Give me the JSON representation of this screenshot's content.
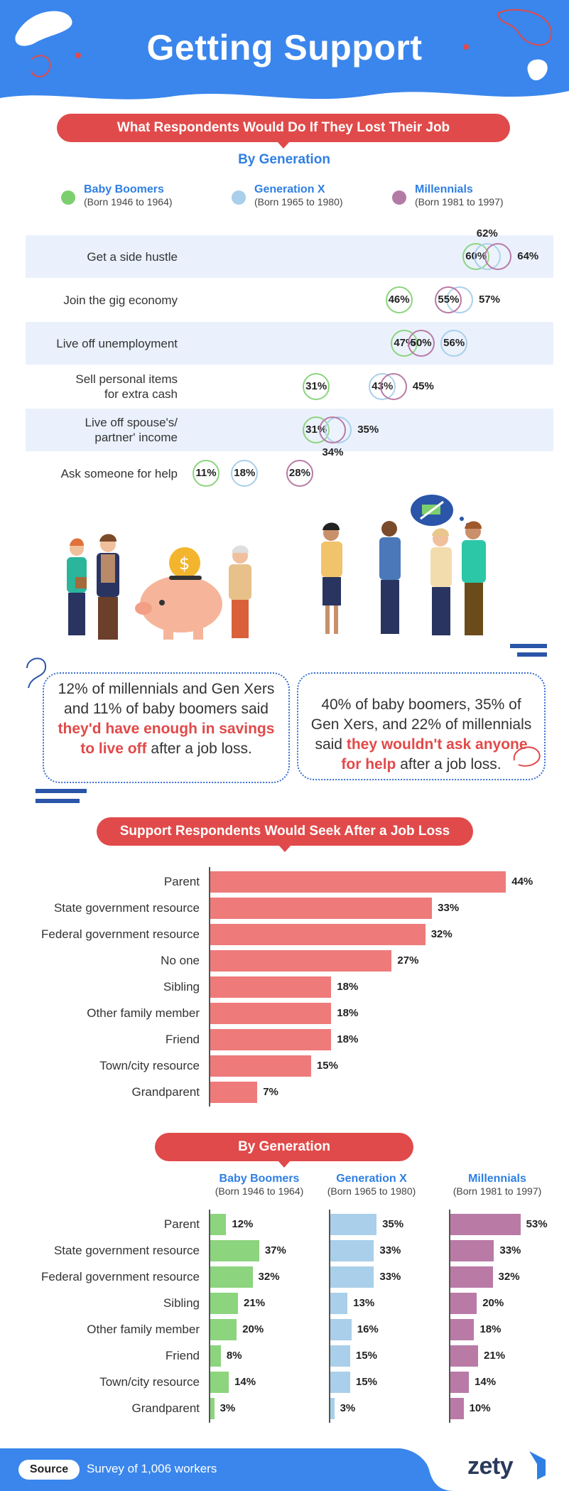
{
  "header": {
    "title": "Getting Support"
  },
  "section1": {
    "pill": "What Respondents Would Do If They Lost Their Job",
    "subtitle": "By Generation"
  },
  "legend": [
    {
      "name": "Baby Boomers",
      "years": "(Born 1946 to 1964)",
      "color": "#7ccf6e"
    },
    {
      "name": "Generation X",
      "years": "(Born 1965 to 1980)",
      "color": "#a9cfea"
    },
    {
      "name": "Millennials",
      "years": "(Born 1981 to 1997)",
      "color": "#b47aa6"
    }
  ],
  "colors": {
    "accent_red": "#e14a4a",
    "accent_blue": "#2f7fe3",
    "bar_red": "#ee7a7a",
    "boomer": "#8cd47e",
    "genx": "#a9cfea",
    "millennial": "#b97aa6"
  },
  "chart_data": [
    {
      "type": "scatter",
      "title": "What Respondents Would Do If They Lost Their Job",
      "subtitle": "By Generation",
      "categories": [
        "Get a side hustle",
        "Join the gig economy",
        "Live off unemployment",
        "Sell personal items for extra cash",
        "Live off spouse's/ partner' income",
        "Ask someone for help"
      ],
      "category_lines": [
        [
          "Get a side hustle"
        ],
        [
          "Join the gig economy"
        ],
        [
          "Live off unemployment"
        ],
        [
          "Sell personal items",
          "for extra cash"
        ],
        [
          "Live off spouse's/",
          "partner' income"
        ],
        [
          "Ask someone for help"
        ]
      ],
      "series": [
        {
          "name": "Baby Boomers",
          "values": [
            60,
            46,
            47,
            31,
            31,
            11
          ]
        },
        {
          "name": "Generation X",
          "values": [
            62,
            57,
            56,
            43,
            35,
            18
          ]
        },
        {
          "name": "Millennials",
          "values": [
            64,
            55,
            50,
            45,
            34,
            28
          ]
        }
      ]
    },
    {
      "type": "bar",
      "title": "Support Respondents Would Seek After a Job Loss",
      "categories": [
        "Parent",
        "State government resource",
        "Federal government resource",
        "No one",
        "Sibling",
        "Other family member",
        "Friend",
        "Town/city resource",
        "Grandparent"
      ],
      "values": [
        44,
        33,
        32,
        27,
        18,
        18,
        18,
        15,
        7
      ]
    },
    {
      "type": "bar",
      "title": "By Generation",
      "categories": [
        "Parent",
        "State government resource",
        "Federal government resource",
        "Sibling",
        "Other family member",
        "Friend",
        "Town/city resource",
        "Grandparent"
      ],
      "series": [
        {
          "name": "Baby Boomers",
          "years": "(Born 1946 to 1964)",
          "values": [
            12,
            37,
            32,
            21,
            20,
            8,
            14,
            3
          ]
        },
        {
          "name": "Generation X",
          "years": "(Born 1965 to 1980)",
          "values": [
            35,
            33,
            33,
            13,
            16,
            15,
            15,
            3
          ]
        },
        {
          "name": "Millennials",
          "years": "(Born 1981 to 1997)",
          "values": [
            53,
            33,
            32,
            20,
            18,
            21,
            14,
            10
          ]
        }
      ]
    }
  ],
  "callouts": {
    "left": {
      "before": "12% of millennials and Gen Xers and 11% of baby boomers said",
      "highlight": "they'd have enough in savings to live off",
      "after": "after a job loss."
    },
    "right": {
      "before": "40% of baby boomers, 35% of Gen Xers, and 22% of millennials said",
      "highlight": "they wouldn't ask anyone for help",
      "after": "after a job loss."
    }
  },
  "section2": {
    "pill": "Support Respondents Would Seek After a Job Loss"
  },
  "section3": {
    "pill": "By Generation"
  },
  "footer": {
    "source_label": "Source",
    "source_text": "Survey of 1,006 workers",
    "brand": "zety"
  }
}
